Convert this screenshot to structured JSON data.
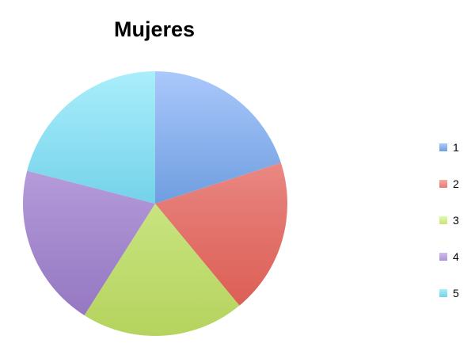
{
  "chart_data": {
    "type": "pie",
    "title": "Mujeres",
    "categories": [
      "1",
      "2",
      "3",
      "4",
      "5"
    ],
    "values": [
      20,
      19,
      20,
      20,
      21
    ],
    "colors": [
      "#6f9ee0",
      "#e57a74",
      "#c8e480",
      "#ad92d4",
      "#74d2ea"
    ],
    "colors_light": [
      "#aac8fb",
      "#f7a9a4",
      "#e0fba5",
      "#d4baf0",
      "#aaeefb"
    ],
    "colors_dark": [
      "#5a8fd8",
      "#d9574c",
      "#b5d35e",
      "#9073be",
      "#57c4dd"
    ],
    "start_angle": "12 o'clock",
    "direction": "clockwise",
    "legend_position": "right"
  }
}
